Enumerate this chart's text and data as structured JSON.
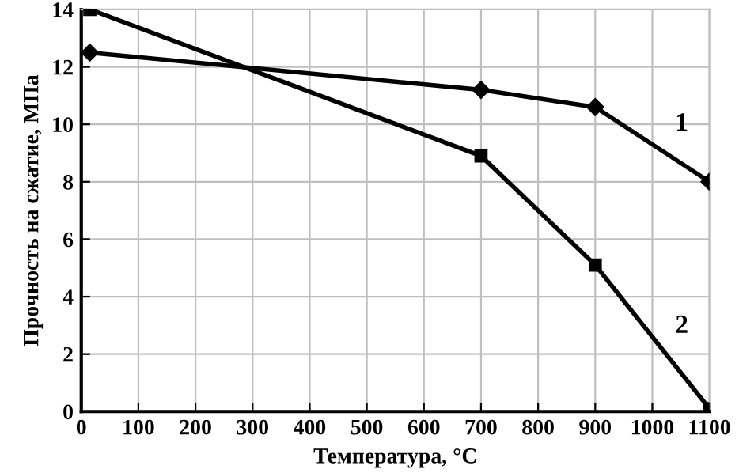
{
  "chart_data": {
    "type": "line",
    "xlabel": "Температура, °С",
    "ylabel": "Прочность на сжатие, МПа",
    "series": [
      {
        "color": "#000000",
        "marker": "diamond",
        "x": [
          15,
          700,
          900,
          1100
        ],
        "values": [
          12.5,
          11.2,
          10.6,
          8.0
        ]
      },
      {
        "color": "#000000",
        "marker": "square",
        "x": [
          15,
          700,
          900,
          1100
        ],
        "values": [
          14.0,
          8.9,
          5.1,
          0.1
        ]
      }
    ],
    "xlim": [
      0,
      1100
    ],
    "xticks": [
      0,
      100,
      200,
      300,
      400,
      500,
      600,
      700,
      800,
      900,
      1000,
      1100
    ],
    "ylim": [
      0,
      14
    ],
    "yticks": [
      0,
      2,
      4,
      6,
      8,
      10,
      12,
      14
    ],
    "grid": true,
    "line_style": "solid",
    "annotations": [
      "1",
      "2"
    ]
  }
}
